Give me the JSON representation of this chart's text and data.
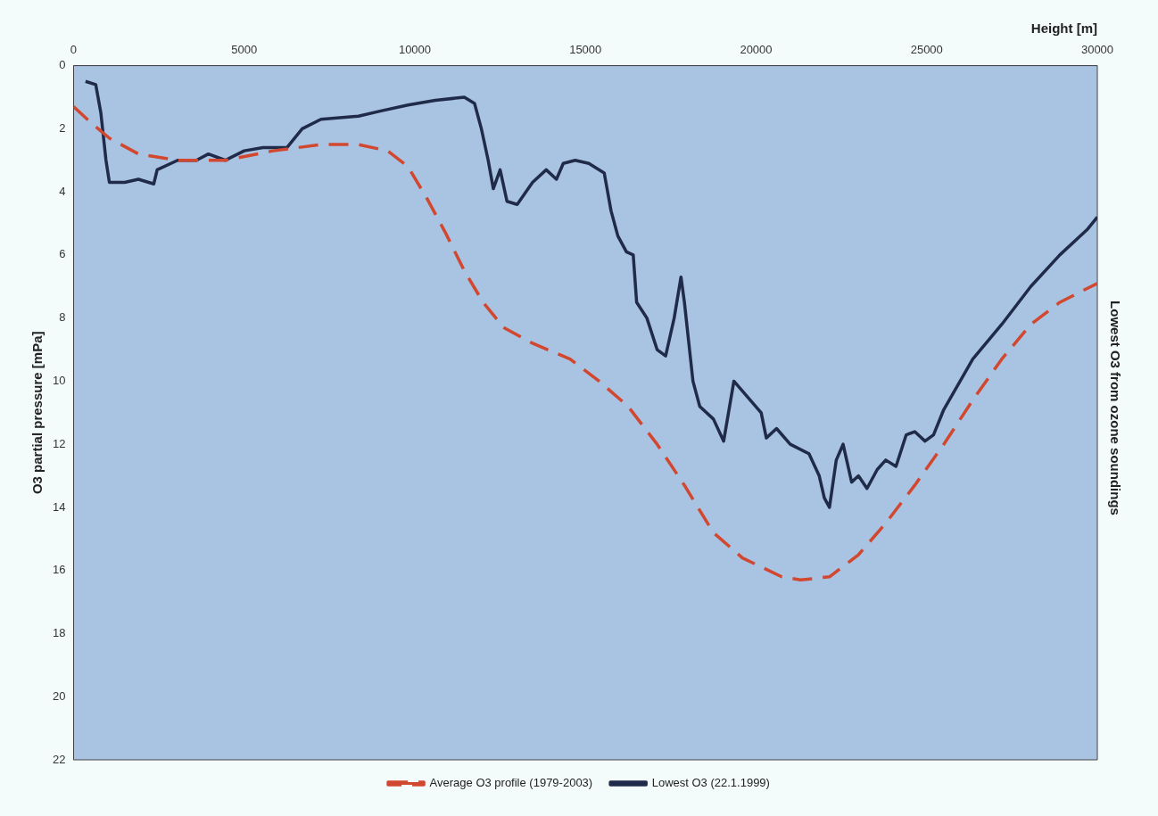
{
  "chart_data": {
    "type": "line",
    "title": "Lowest O3 from ozone soundings",
    "xlabel": "Height [m]",
    "ylabel": "O3 partial pressure [mPa]",
    "xlim": [
      0,
      30000
    ],
    "xticks": [
      0,
      5000,
      10000,
      15000,
      20000,
      25000,
      30000
    ],
    "ylim": [
      22,
      0
    ],
    "yticks": [
      0,
      2,
      4,
      6,
      8,
      10,
      12,
      14,
      16,
      18,
      20,
      22
    ],
    "grid": false,
    "legend": "bottom",
    "series": [
      {
        "name": "Average O3 profile (1979-2003)",
        "color": "#d2472f",
        "line_style": "dashed",
        "x": [
          0,
          500,
          1050,
          1900,
          3050,
          4450,
          5850,
          7250,
          8350,
          9200,
          9800,
          10350,
          10900,
          11450,
          12000,
          12600,
          13450,
          14550,
          15400,
          16250,
          17100,
          17900,
          18750,
          19600,
          20750,
          21300,
          22150,
          23000,
          23800,
          24650,
          25500,
          26350,
          27200,
          28050,
          28900,
          30000
        ],
        "values": [
          1.3,
          1.8,
          2.3,
          2.8,
          3.0,
          3.0,
          2.7,
          2.5,
          2.5,
          2.7,
          3.2,
          4.2,
          5.3,
          6.5,
          7.5,
          8.3,
          8.8,
          9.3,
          10.0,
          10.8,
          12.0,
          13.3,
          14.8,
          15.6,
          16.2,
          16.3,
          16.2,
          15.5,
          14.5,
          13.3,
          12.0,
          10.6,
          9.3,
          8.2,
          7.5,
          6.9
        ]
      },
      {
        "name": "Lowest O3 (22.1.1999)",
        "color": "#1f2b48",
        "line_style": "solid",
        "x": [
          350,
          650,
          800,
          950,
          1050,
          1500,
          1900,
          2200,
          2350,
          2450,
          3050,
          3600,
          3950,
          4450,
          5000,
          5550,
          6250,
          6700,
          7250,
          8350,
          8950,
          9800,
          10600,
          11450,
          11750,
          11950,
          12150,
          12300,
          12500,
          12700,
          13000,
          13450,
          13850,
          14150,
          14350,
          14700,
          15100,
          15550,
          15750,
          15950,
          16200,
          16400,
          16500,
          16800,
          17100,
          17350,
          17600,
          17800,
          17900,
          18150,
          18350,
          18750,
          19050,
          19350,
          19750,
          20150,
          20300,
          20600,
          21000,
          21550,
          21850,
          22000,
          22150,
          22350,
          22550,
          22800,
          23000,
          23250,
          23550,
          23800,
          24100,
          24400,
          24650,
          24950,
          25200,
          25500,
          26350,
          27200,
          28050,
          28900,
          29700,
          30000
        ],
        "values": [
          0.5,
          0.6,
          1.5,
          3.0,
          3.7,
          3.7,
          3.6,
          3.7,
          3.75,
          3.3,
          3.0,
          3.0,
          2.8,
          3.0,
          2.7,
          2.6,
          2.6,
          2.0,
          1.7,
          1.6,
          1.45,
          1.25,
          1.1,
          1.0,
          1.2,
          2.0,
          3.0,
          3.9,
          3.3,
          4.3,
          4.4,
          3.7,
          3.3,
          3.6,
          3.1,
          3.0,
          3.1,
          3.4,
          4.6,
          5.4,
          5.9,
          6.0,
          7.5,
          8.0,
          9.0,
          9.2,
          8.0,
          6.7,
          7.5,
          10.0,
          10.8,
          11.2,
          11.9,
          10.0,
          10.5,
          11.0,
          11.8,
          11.5,
          12.0,
          12.3,
          13.0,
          13.7,
          14.0,
          12.5,
          12.0,
          13.2,
          13.0,
          13.4,
          12.8,
          12.5,
          12.7,
          11.7,
          11.6,
          11.9,
          11.7,
          10.9,
          9.3,
          8.2,
          7.0,
          6.0,
          5.2,
          4.8
        ]
      }
    ]
  }
}
